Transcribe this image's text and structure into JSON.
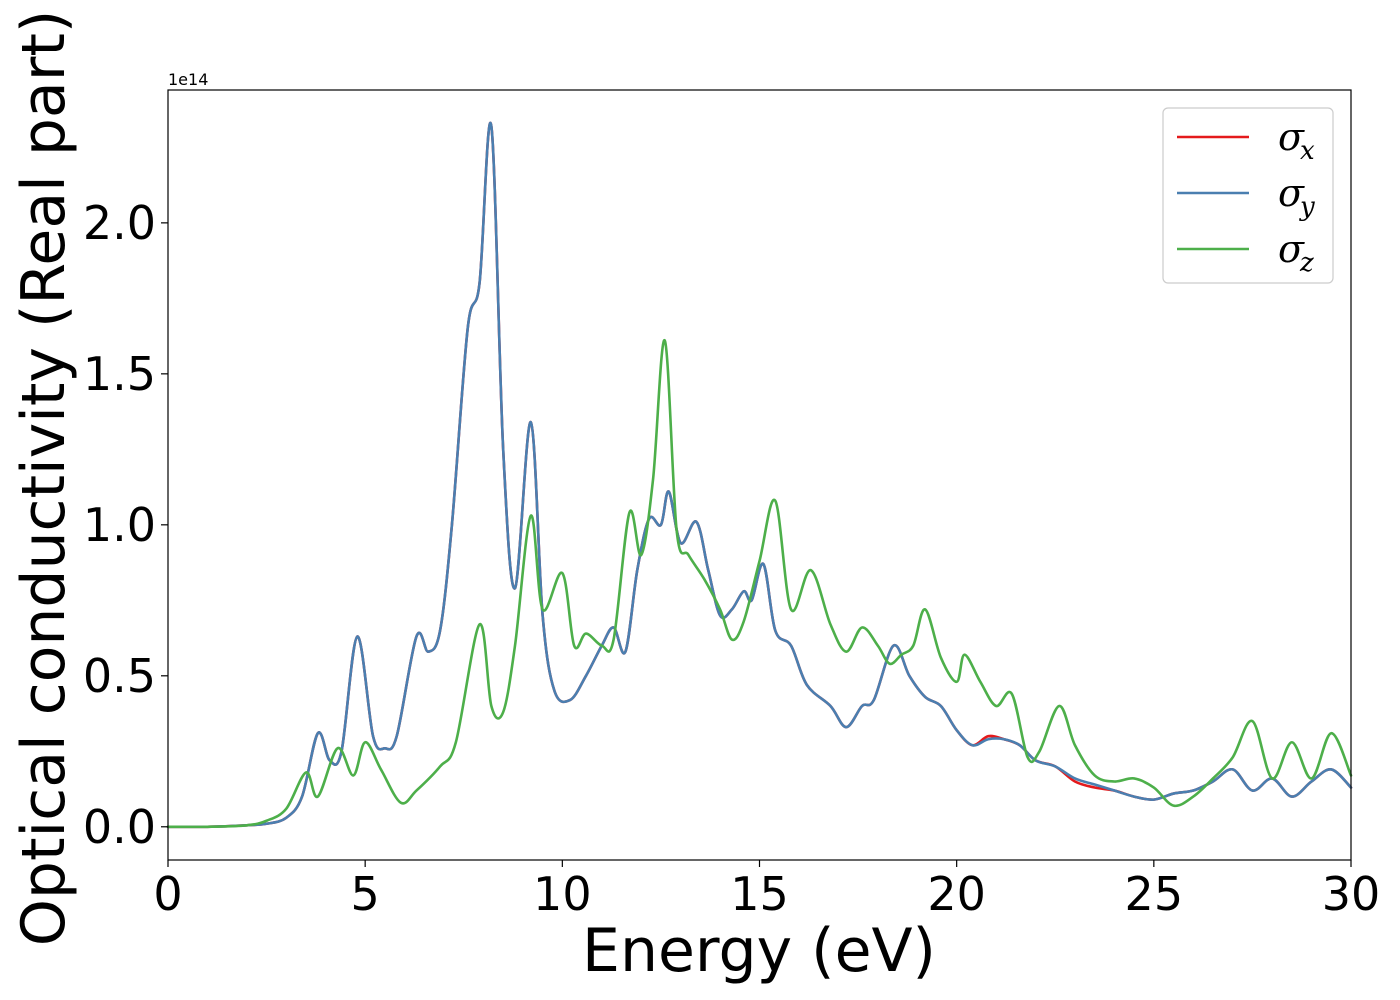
{
  "chart_data": {
    "type": "line",
    "title": "",
    "xlabel": "Energy (eV)",
    "ylabel": "Optical conductivity (Real part)",
    "y_offset_label": "1e14",
    "xlim": [
      0,
      30
    ],
    "ylim": [
      -0.11,
      2.44
    ],
    "x_ticks": [
      0,
      5,
      10,
      15,
      20,
      25,
      30
    ],
    "x_tick_labels": [
      "0",
      "5",
      "10",
      "15",
      "20",
      "25",
      "30"
    ],
    "y_ticks": [
      0.0,
      0.5,
      1.0,
      1.5,
      2.0
    ],
    "y_tick_labels": [
      "0.0",
      "0.5",
      "1.0",
      "1.5",
      "2.0"
    ],
    "grid": false,
    "legend_position": "top-right",
    "series": [
      {
        "name": "σ_x",
        "legend_base": "σ",
        "legend_sub": "x",
        "color": "#e41a1c",
        "x": [
          0,
          1,
          2,
          2.5,
          3,
          3.4,
          3.8,
          4.1,
          4.4,
          4.8,
          5.2,
          5.5,
          5.8,
          6.3,
          6.6,
          6.9,
          7.2,
          7.6,
          7.9,
          8.2,
          8.5,
          8.8,
          9.2,
          9.5,
          9.8,
          10.2,
          10.6,
          11,
          11.3,
          11.6,
          11.9,
          12.2,
          12.5,
          12.7,
          13,
          13.4,
          13.7,
          14,
          14.3,
          14.6,
          14.8,
          15.1,
          15.4,
          15.8,
          16.2,
          16.8,
          17.2,
          17.6,
          17.9,
          18.4,
          18.8,
          19.2,
          19.6,
          20,
          20.4,
          20.8,
          21.2,
          21.6,
          22,
          22.5,
          23,
          23.5,
          24,
          24.5,
          25,
          25.5,
          26,
          26.5,
          27,
          27.5,
          28,
          28.5,
          29,
          29.5,
          30
        ],
        "y": [
          0,
          0,
          0.005,
          0.01,
          0.03,
          0.1,
          0.31,
          0.22,
          0.25,
          0.63,
          0.3,
          0.26,
          0.3,
          0.63,
          0.58,
          0.65,
          1.0,
          1.65,
          1.8,
          2.32,
          1.25,
          0.79,
          1.34,
          0.7,
          0.45,
          0.42,
          0.5,
          0.6,
          0.66,
          0.58,
          0.85,
          1.02,
          1.0,
          1.11,
          0.94,
          1.01,
          0.85,
          0.7,
          0.72,
          0.78,
          0.75,
          0.87,
          0.65,
          0.6,
          0.47,
          0.4,
          0.33,
          0.4,
          0.42,
          0.6,
          0.5,
          0.43,
          0.4,
          0.32,
          0.27,
          0.3,
          0.29,
          0.27,
          0.22,
          0.2,
          0.15,
          0.13,
          0.12,
          0.1,
          0.09,
          0.11,
          0.12,
          0.15,
          0.19,
          0.12,
          0.16,
          0.1,
          0.15,
          0.19,
          0.13
        ]
      },
      {
        "name": "σ_y",
        "legend_base": "σ",
        "legend_sub": "y",
        "color": "#4a7fb0",
        "x": [
          0,
          1,
          2,
          2.5,
          3,
          3.4,
          3.8,
          4.1,
          4.4,
          4.8,
          5.2,
          5.5,
          5.8,
          6.3,
          6.6,
          6.9,
          7.2,
          7.6,
          7.9,
          8.2,
          8.5,
          8.8,
          9.2,
          9.5,
          9.8,
          10.2,
          10.6,
          11,
          11.3,
          11.6,
          11.9,
          12.2,
          12.5,
          12.7,
          13,
          13.4,
          13.7,
          14,
          14.3,
          14.6,
          14.8,
          15.1,
          15.4,
          15.8,
          16.2,
          16.8,
          17.2,
          17.6,
          17.9,
          18.4,
          18.8,
          19.2,
          19.6,
          20,
          20.4,
          20.8,
          21.2,
          21.6,
          22,
          22.5,
          23,
          23.5,
          24,
          24.5,
          25,
          25.5,
          26,
          26.5,
          27,
          27.5,
          28,
          28.5,
          29,
          29.5,
          30
        ],
        "y": [
          0,
          0,
          0.005,
          0.01,
          0.03,
          0.1,
          0.31,
          0.22,
          0.25,
          0.63,
          0.3,
          0.26,
          0.3,
          0.63,
          0.58,
          0.65,
          1.0,
          1.65,
          1.8,
          2.32,
          1.25,
          0.79,
          1.34,
          0.7,
          0.45,
          0.42,
          0.5,
          0.6,
          0.66,
          0.58,
          0.85,
          1.02,
          1.0,
          1.11,
          0.94,
          1.01,
          0.85,
          0.7,
          0.72,
          0.78,
          0.75,
          0.87,
          0.65,
          0.6,
          0.47,
          0.4,
          0.33,
          0.4,
          0.42,
          0.6,
          0.5,
          0.43,
          0.4,
          0.32,
          0.27,
          0.29,
          0.29,
          0.27,
          0.22,
          0.2,
          0.16,
          0.14,
          0.12,
          0.1,
          0.09,
          0.11,
          0.12,
          0.15,
          0.19,
          0.12,
          0.16,
          0.1,
          0.15,
          0.19,
          0.13
        ]
      },
      {
        "name": "σ_z",
        "legend_base": "σ",
        "legend_sub": "z",
        "color": "#4daf4a",
        "x": [
          0,
          1,
          2,
          2.5,
          3,
          3.5,
          3.8,
          4.3,
          4.7,
          5.0,
          5.4,
          5.9,
          6.3,
          6.9,
          7.3,
          7.9,
          8.2,
          8.5,
          8.8,
          9.2,
          9.5,
          10.0,
          10.3,
          10.6,
          11.0,
          11.3,
          11.7,
          12.0,
          12.3,
          12.6,
          12.9,
          13.2,
          13.6,
          14.0,
          14.3,
          14.6,
          15.0,
          15.4,
          15.8,
          16.3,
          16.8,
          17.2,
          17.6,
          18.0,
          18.3,
          18.6,
          18.9,
          19.2,
          19.6,
          20.0,
          20.2,
          20.6,
          21.0,
          21.4,
          21.8,
          22.1,
          22.6,
          23.0,
          23.5,
          24.0,
          24.5,
          25.0,
          25.5,
          26.0,
          26.5,
          27.0,
          27.5,
          28.0,
          28.5,
          29.0,
          29.5,
          30.0
        ],
        "y": [
          0,
          0,
          0.005,
          0.02,
          0.06,
          0.18,
          0.1,
          0.26,
          0.17,
          0.28,
          0.19,
          0.08,
          0.12,
          0.2,
          0.28,
          0.67,
          0.4,
          0.38,
          0.6,
          1.03,
          0.72,
          0.84,
          0.6,
          0.64,
          0.6,
          0.62,
          1.04,
          0.9,
          1.15,
          1.61,
          0.98,
          0.9,
          0.82,
          0.72,
          0.62,
          0.68,
          0.88,
          1.08,
          0.72,
          0.85,
          0.67,
          0.58,
          0.66,
          0.6,
          0.54,
          0.57,
          0.6,
          0.72,
          0.56,
          0.48,
          0.57,
          0.48,
          0.4,
          0.44,
          0.23,
          0.25,
          0.4,
          0.27,
          0.17,
          0.15,
          0.16,
          0.13,
          0.07,
          0.1,
          0.16,
          0.23,
          0.35,
          0.16,
          0.28,
          0.16,
          0.31,
          0.17
        ]
      }
    ]
  }
}
